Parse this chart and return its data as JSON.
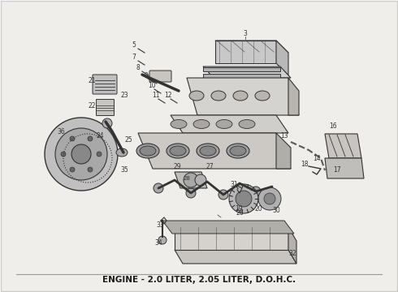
{
  "title": "ENGINE – 2.0 LITER, 2.05 LITER, D.O.H.C.",
  "background_color": "#ffffff",
  "border_color": "#cccccc",
  "title_fontsize": 7.5,
  "title_fontweight": "bold",
  "fig_width": 4.9,
  "fig_height": 3.6,
  "dpi": 100,
  "caption": "ENGINE - 2.0 LITER, 2.05 LITER, D.O.H.C.",
  "diagram_color": "#1a1a1a",
  "line_color": "#333333",
  "bg_color": "#f0eeea"
}
